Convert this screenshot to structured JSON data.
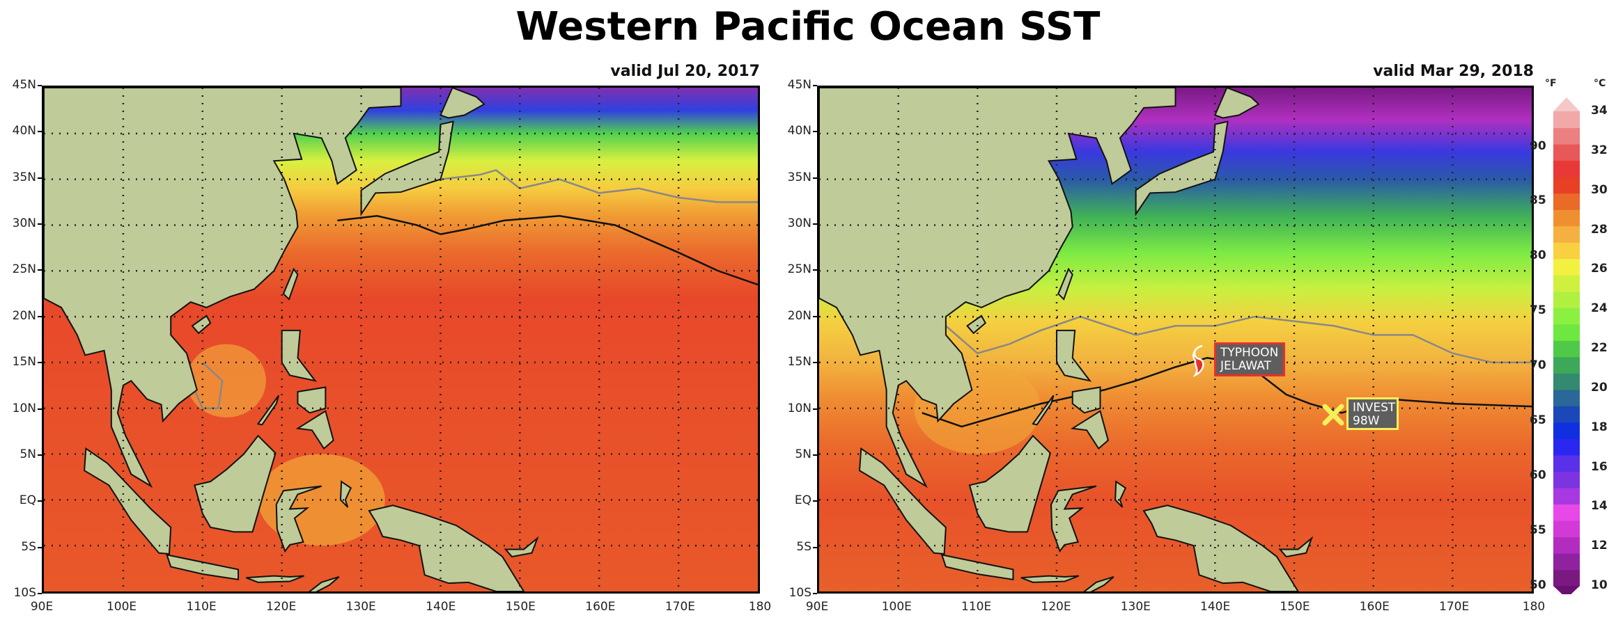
{
  "title": "Western Pacific Ocean SST",
  "panels": [
    {
      "valid": "valid Jul 20, 2017"
    },
    {
      "valid": "valid Mar 29, 2018"
    }
  ],
  "lat_labels": [
    "45N",
    "40N",
    "35N",
    "30N",
    "25N",
    "20N",
    "15N",
    "10N",
    "5N",
    "EQ",
    "5S",
    "10S"
  ],
  "lon_labels": [
    "90E",
    "100E",
    "110E",
    "120E",
    "130E",
    "140E",
    "150E",
    "160E",
    "170E",
    "180"
  ],
  "storms": {
    "typhoon": {
      "line1": "TYPHOON",
      "line2": "JELAWAT",
      "color": "#e8302a",
      "icon": "typhoon-icon"
    },
    "invest": {
      "line1": "INVEST",
      "line2": "98W",
      "color": "#f5f05a",
      "icon": "x-mark-icon"
    }
  },
  "colorbar": {
    "f_unit": "°F",
    "c_unit": "°C",
    "f_labels": [
      "50",
      "55",
      "60",
      "65",
      "70",
      "75",
      "80",
      "85",
      "90"
    ],
    "c_labels": [
      "10",
      "12",
      "14",
      "16",
      "18",
      "20",
      "22",
      "24",
      "26",
      "28",
      "30",
      "32",
      "34"
    ],
    "colors": [
      "#7a1a80",
      "#9022a0",
      "#b22cc0",
      "#d23ad8",
      "#e848e8",
      "#a838e0",
      "#7b34e0",
      "#5a30e8",
      "#2a28f0",
      "#1030e0",
      "#1a48b8",
      "#2a6898",
      "#348a70",
      "#3ca858",
      "#50c848",
      "#6ee840",
      "#8cf040",
      "#b0f040",
      "#d0f040",
      "#f2f040",
      "#f8d040",
      "#f4b040",
      "#ef9030",
      "#ea6a28",
      "#e84024",
      "#e83838",
      "#e85858",
      "#ec8080",
      "#f0a8a8"
    ],
    "min_color": "#6a1070",
    "max_color": "#f4c8c8",
    "land_color": "#bfcb98"
  }
}
